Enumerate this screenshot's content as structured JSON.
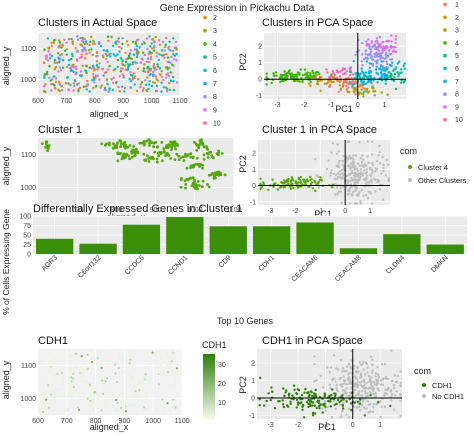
{
  "page": {
    "title": "Gene Expression in Pickachu Data"
  },
  "colors": {
    "panel_bg": "#ebebeb",
    "grid": "#ffffff",
    "green": "#53a80a",
    "gray": "#bdbdbd",
    "cluster_palette": [
      "#f8766d",
      "#d89000",
      "#a3a500",
      "#39b600",
      "#00bf7d",
      "#00bfc4",
      "#00b0f6",
      "#9590ff",
      "#e76bf3",
      "#ff62bc"
    ]
  },
  "panels": {
    "p1": {
      "title": "Clusters in Actual Space",
      "xlabel": "aligned_x",
      "ylabel": "aligned_y"
    },
    "p2": {
      "title": "Clusters in PCA Space",
      "xlabel": "PC1",
      "ylabel": "PC2"
    },
    "p3": {
      "title": "Cluster 1",
      "xlabel": "aligned_x",
      "ylabel": "aligned_y"
    },
    "p4": {
      "title": "Cluster 1 in PCA Space",
      "xlabel": "PC1",
      "ylabel": "PC2"
    },
    "p5": {
      "title": "Differentially Expressed Genes in Cluster 1",
      "xlabel": "Top 10 Genes",
      "ylabel": "% of Cells Expressing Gene"
    },
    "p6": {
      "title": "CDH1",
      "xlabel": "aligned_x",
      "ylabel": "aligned_y"
    },
    "p7": {
      "title": "CDH1 in PCA Space",
      "xlabel": "PC1",
      "ylabel": "PC2"
    }
  },
  "legends": {
    "clusters": {
      "entries": [
        "1",
        "2",
        "3",
        "4",
        "5",
        "6",
        "7",
        "8",
        "9",
        "10"
      ]
    },
    "com1": {
      "title": "com",
      "entries": [
        "Cluster 4",
        "Other Clusters"
      ]
    },
    "cdh1_scale": {
      "title": "CDH1",
      "ticks": [
        "30",
        "20",
        "10"
      ]
    },
    "com2": {
      "title": "com",
      "entries": [
        "CDH1",
        "No CDH1"
      ]
    }
  },
  "chart_data": [
    {
      "type": "scatter",
      "title": "Clusters in Actual Space",
      "xlabel": "aligned_x",
      "ylabel": "aligned_y",
      "xlim": [
        600,
        1100
      ],
      "ylim": [
        950,
        1150
      ],
      "xticks": [
        600,
        700,
        800,
        900,
        1000,
        1100
      ],
      "yticks": [
        1000,
        1100
      ],
      "series_names": [
        "1",
        "2",
        "3",
        "4",
        "5",
        "6",
        "7",
        "8",
        "9",
        "10"
      ],
      "grid": true
    },
    {
      "type": "scatter",
      "title": "Clusters in PCA Space",
      "xlabel": "PC1",
      "ylabel": "PC2",
      "xlim": [
        -3.5,
        1.8
      ],
      "ylim": [
        -1.2,
        2.8
      ],
      "xticks": [
        -3,
        -2,
        -1,
        0,
        1
      ],
      "yticks": [
        -1,
        0,
        1,
        2
      ],
      "grid": true
    },
    {
      "type": "scatter",
      "title": "Cluster 1",
      "xlabel": "aligned_x",
      "ylabel": "aligned_y",
      "xlim": [
        600,
        1100
      ],
      "ylim": [
        950,
        1150
      ],
      "xticks": [
        700,
        800,
        900,
        1000,
        1100
      ],
      "yticks": [
        1000,
        1100
      ],
      "grid": true
    },
    {
      "type": "scatter",
      "title": "Cluster 1 in PCA Space",
      "xlabel": "PC1",
      "ylabel": "PC2",
      "xlim": [
        -3.5,
        1.8
      ],
      "ylim": [
        -1.2,
        2.8
      ],
      "xticks": [
        -3,
        -2,
        -1,
        0,
        1
      ],
      "yticks": [
        -1,
        0,
        1,
        2
      ],
      "series": [
        {
          "name": "Cluster 4"
        },
        {
          "name": "Other Clusters"
        }
      ],
      "grid": true
    },
    {
      "type": "bar",
      "title": "Differentially Expressed Genes in Cluster 1",
      "xlabel": "Top 10 Genes",
      "ylabel": "% of Cells Expressing Gene",
      "categories": [
        "AGR3",
        "C6orf132",
        "CCDC6",
        "CCND1",
        "CD9",
        "CDH1",
        "CEACAM6",
        "CEACAM8",
        "CLDN4",
        "DMKN"
      ],
      "values": [
        40,
        27,
        77,
        97,
        73,
        73,
        83,
        15,
        52,
        25
      ],
      "ylim": [
        0,
        100
      ],
      "yticks": [
        0,
        25,
        50,
        75,
        100
      ],
      "grid": true
    },
    {
      "type": "scatter",
      "title": "CDH1",
      "xlabel": "aligned_x",
      "ylabel": "aligned_y",
      "xlim": [
        600,
        1100
      ],
      "ylim": [
        950,
        1150
      ],
      "xticks": [
        600,
        700,
        800,
        900,
        1000,
        1100
      ],
      "yticks": [
        1000,
        1100
      ],
      "colorbar": {
        "title": "CDH1",
        "range": [
          0,
          35
        ],
        "ticks": [
          10,
          20,
          30
        ]
      },
      "grid": true
    },
    {
      "type": "scatter",
      "title": "CDH1 in PCA Space",
      "xlabel": "PC1",
      "ylabel": "PC2",
      "xlim": [
        -3.5,
        1.8
      ],
      "ylim": [
        -1.2,
        2.8
      ],
      "xticks": [
        -3,
        -2,
        -1,
        0,
        1
      ],
      "yticks": [
        -1,
        0,
        1,
        2
      ],
      "series": [
        {
          "name": "CDH1"
        },
        {
          "name": "No CDH1"
        }
      ],
      "grid": true
    }
  ]
}
